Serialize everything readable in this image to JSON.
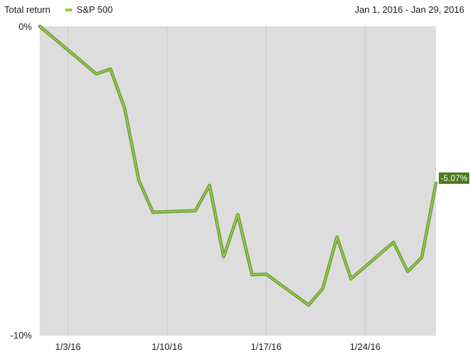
{
  "header": {
    "title": "Total return",
    "legend_label": "S&P 500",
    "date_range": "Jan 1, 2016 - Jan 29, 2016"
  },
  "colors": {
    "plot_background": "#dddddd",
    "grid": "#c6c6c6",
    "line_outer": "#6d8f3e",
    "line_inner": "#8fd13e",
    "end_label_bg": "#4a7a1c",
    "end_label_text": "#ffffff"
  },
  "chart_data": {
    "type": "line",
    "series": [
      {
        "name": "S&P 500",
        "x": [
          "2016-01-01",
          "2016-01-05",
          "2016-01-06",
          "2016-01-07",
          "2016-01-08",
          "2016-01-09",
          "2016-01-12",
          "2016-01-13",
          "2016-01-14",
          "2016-01-15",
          "2016-01-16",
          "2016-01-17",
          "2016-01-20",
          "2016-01-21",
          "2016-01-22",
          "2016-01-23",
          "2016-01-26",
          "2016-01-27",
          "2016-01-28",
          "2016-01-29"
        ],
        "values": [
          0.0,
          -1.54,
          -1.38,
          -2.65,
          -4.98,
          -6.01,
          -5.96,
          -5.14,
          -7.45,
          -6.09,
          -8.03,
          -8.01,
          -9.01,
          -8.48,
          -6.81,
          -8.16,
          -6.98,
          -7.93,
          -7.47,
          -5.07
        ]
      }
    ],
    "ylim": [
      -10,
      0
    ],
    "y_ticks": [
      0,
      -10
    ],
    "y_tick_labels": [
      "0%",
      "-10%"
    ],
    "x_ticks": [
      "2016-01-03",
      "2016-01-10",
      "2016-01-17",
      "2016-01-24"
    ],
    "x_tick_labels": [
      "1/3/16",
      "1/10/16",
      "1/17/16",
      "1/24/16"
    ],
    "xlim": [
      "2016-01-01",
      "2016-01-29"
    ],
    "end_value_label": "-5.07%",
    "grid": true,
    "legend_placement": "top-left"
  }
}
